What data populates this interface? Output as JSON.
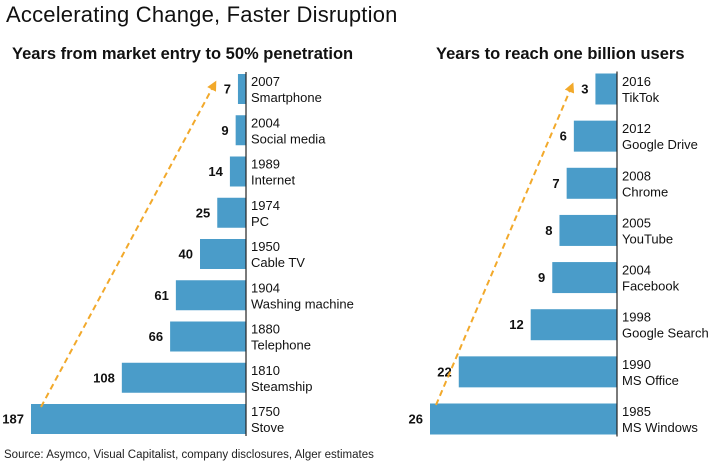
{
  "title": "Accelerating Change, Faster Disruption",
  "source": "Source: Asymco, Visual Capitalist, company disclosures, Alger estimates",
  "colors": {
    "bar": "#4a9cc9",
    "arrow": "#f2a92b",
    "text": "#111111"
  },
  "chart_data": [
    {
      "type": "bar",
      "orientation": "horizontal",
      "title": "Years from market entry to 50% penetration",
      "categories": [
        "Smartphone",
        "Social media",
        "Internet",
        "PC",
        "Cable TV",
        "Washing machine",
        "Telephone",
        "Steamship",
        "Stove"
      ],
      "years": [
        "2007",
        "2004",
        "1989",
        "1974",
        "1950",
        "1904",
        "1880",
        "1810",
        "1750"
      ],
      "values": [
        7,
        9,
        14,
        25,
        40,
        61,
        66,
        108,
        187
      ],
      "xlim": [
        0,
        187
      ],
      "trend_arrow": "dashed, from Stove to Smartphone"
    },
    {
      "type": "bar",
      "orientation": "horizontal",
      "title": "Years to reach one billion users",
      "categories": [
        "TikTok",
        "Google Drive",
        "Chrome",
        "YouTube",
        "Facebook",
        "Google Search",
        "MS Office",
        "MS Windows"
      ],
      "years": [
        "2016",
        "2012",
        "2008",
        "2005",
        "2004",
        "1998",
        "1990",
        "1985"
      ],
      "values": [
        3,
        6,
        7,
        8,
        9,
        12,
        22,
        26
      ],
      "xlim": [
        0,
        26
      ],
      "trend_arrow": "dashed, from MS Windows to TikTok"
    }
  ]
}
